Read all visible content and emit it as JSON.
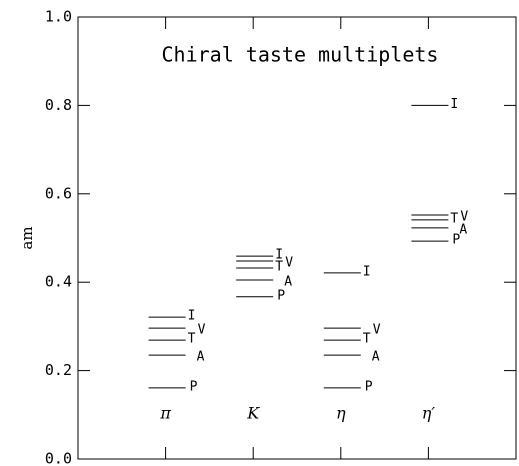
{
  "chart_data": {
    "type": "levels",
    "title": "Chiral taste multiplets",
    "ylabel": "am",
    "categories": [
      "π",
      "K",
      "η",
      "η′"
    ],
    "series": [
      {
        "name": "I",
        "color": "#000000",
        "values": [
          0.321,
          0.459,
          0.421,
          0.8
        ]
      },
      {
        "name": "V",
        "color": "#000000",
        "values": [
          0.296,
          0.448,
          0.296,
          0.552
        ]
      },
      {
        "name": "T",
        "color": "#000000",
        "values": [
          0.269,
          0.432,
          0.269,
          0.541
        ]
      },
      {
        "name": "A",
        "color": "#000000",
        "values": [
          0.235,
          0.405,
          0.235,
          0.523
        ]
      },
      {
        "name": "P",
        "color": "#000000",
        "values": [
          0.161,
          0.367,
          0.161,
          0.493
        ]
      }
    ],
    "ylim": [
      0,
      1
    ],
    "yticks": [
      {
        "value": 0,
        "label": "0.0"
      },
      0.2,
      0.4,
      0.6,
      0.8,
      {
        "value": 1,
        "label": "1.0"
      }
    ]
  }
}
